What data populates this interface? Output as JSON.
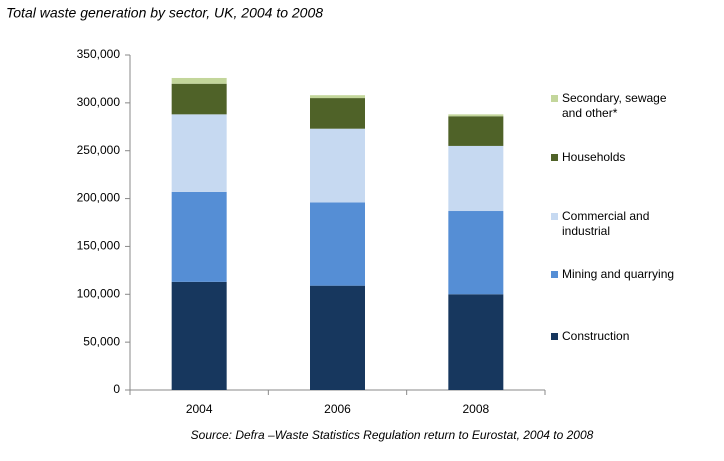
{
  "chart_data": {
    "type": "stacked_bar",
    "title": "Total waste generation  by sector, UK, 2004 to 2008",
    "source": "Source: Defra –Waste Statistics Regulation return to Eurostat, 2004 to 2008",
    "categories": [
      "2004",
      "2006",
      "2008"
    ],
    "series": [
      {
        "name": "Construction",
        "color": "#17375e",
        "values": [
          113000,
          109000,
          100000
        ]
      },
      {
        "name": "Mining and quarrying",
        "color": "#558ed5",
        "values": [
          94000,
          87000,
          87000
        ]
      },
      {
        "name": "Commercial and industrial",
        "color": "#c6d9f1",
        "values": [
          81000,
          77000,
          68000
        ]
      },
      {
        "name": "Households",
        "color": "#4f6228",
        "values": [
          32000,
          32000,
          31000
        ]
      },
      {
        "name": "Secondary, sewage and other*",
        "color": "#c3d69b",
        "values": [
          6000,
          3000,
          2000
        ]
      }
    ],
    "ylim": [
      0,
      350000
    ],
    "yticks": [
      0,
      {
        "value": 50000,
        "label": "50,000"
      },
      {
        "value": 100000,
        "label": "100,000"
      },
      {
        "value": 150000,
        "label": "150,000"
      },
      {
        "value": 200000,
        "label": "200,000"
      },
      {
        "value": 250000,
        "label": "250,000"
      },
      {
        "value": 300000,
        "label": "300,000"
      },
      {
        "value": 350000,
        "label": "350,000"
      }
    ],
    "legend": "right",
    "grid": false
  }
}
